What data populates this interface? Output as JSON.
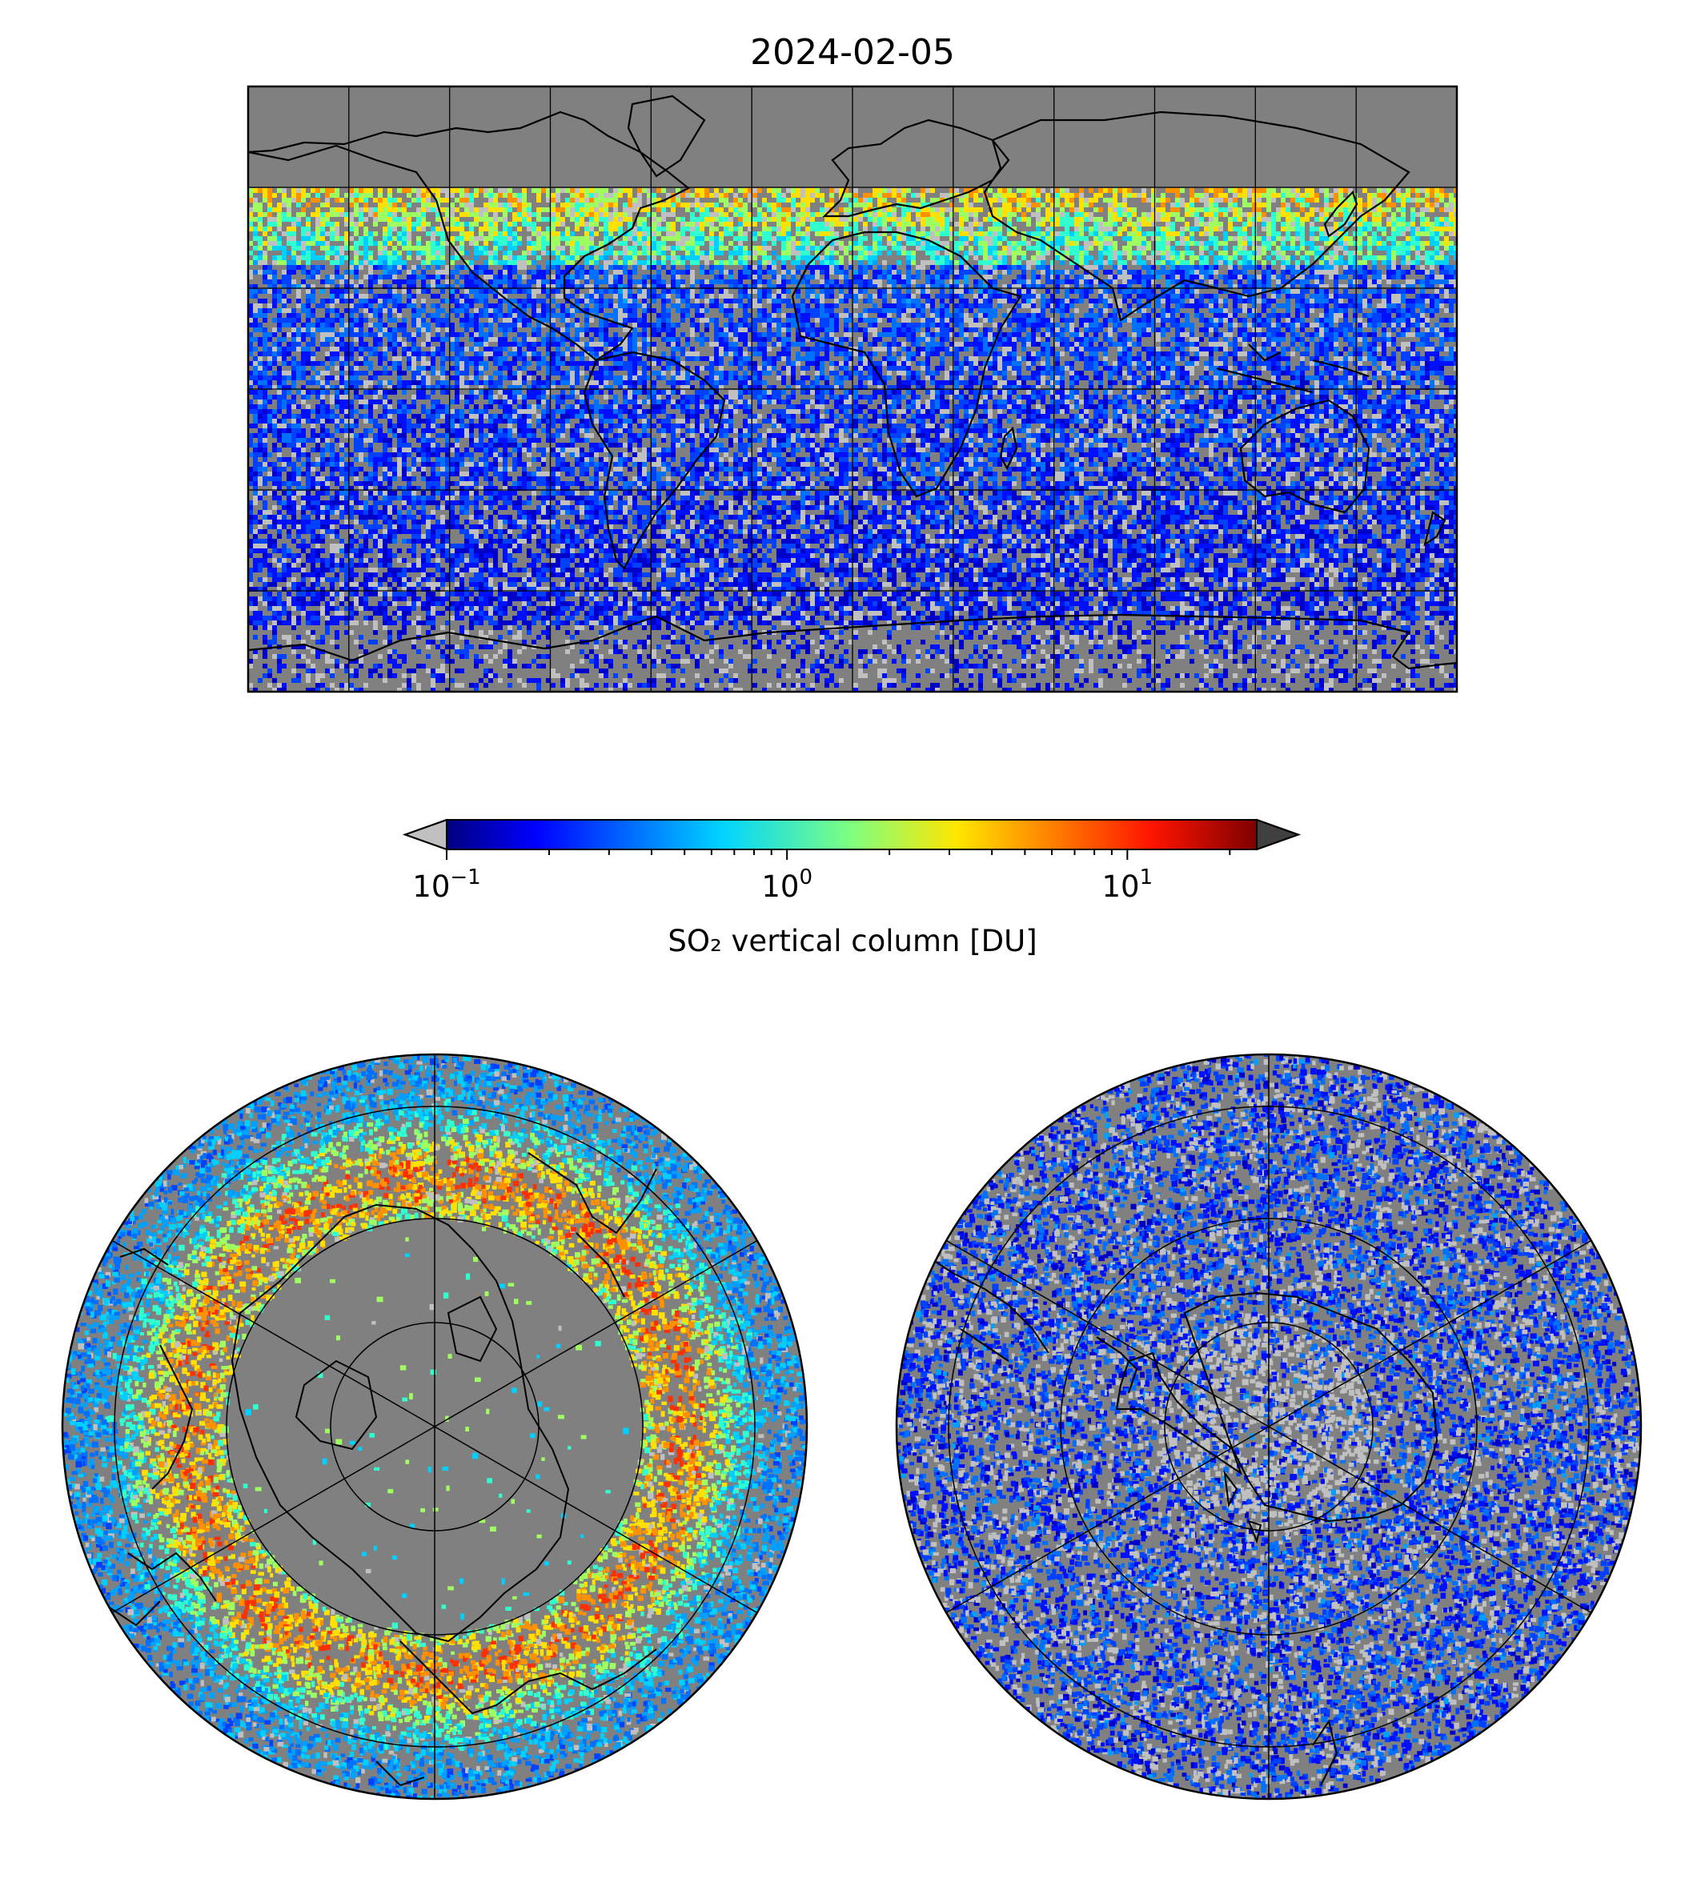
{
  "title": "2024-02-05",
  "colorbar": {
    "label": "SO₂ vertical column [DU]",
    "scale": "log",
    "range": [
      0.1,
      24
    ],
    "colormap": "jet",
    "under_color": "#c0c0c0",
    "over_color": "#404040",
    "ticks": [
      {
        "value": 0.1,
        "base": "10",
        "exp": "−1"
      },
      {
        "value": 1,
        "base": "10",
        "exp": "0"
      },
      {
        "value": 10,
        "base": "10",
        "exp": "1"
      }
    ]
  },
  "maps": {
    "global": {
      "projection": "equirectangular",
      "background": "#808080",
      "lon_range": [
        -180,
        180
      ],
      "lat_range": [
        -90,
        90
      ]
    },
    "north_polar": {
      "projection": "polar-stereographic",
      "hemisphere": "north",
      "background": "#808080"
    },
    "south_polar": {
      "projection": "polar-stereographic",
      "hemisphere": "south",
      "background": "#808080"
    }
  }
}
